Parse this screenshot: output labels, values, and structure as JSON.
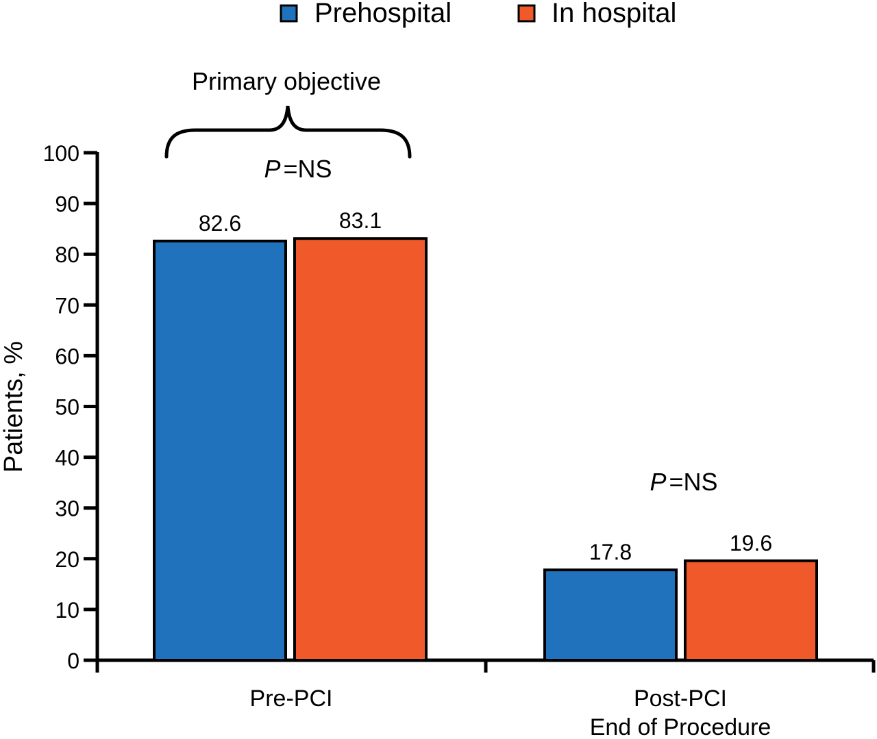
{
  "chart_data": {
    "type": "bar",
    "title": "",
    "xlabel": "",
    "ylabel": "Patients, %",
    "ylim": [
      0,
      100
    ],
    "yticks": [
      0,
      10,
      20,
      30,
      40,
      50,
      60,
      70,
      80,
      90,
      100
    ],
    "grid": false,
    "legend_position": "top-center",
    "categories": [
      {
        "label_lines": [
          "Pre-PCI"
        ]
      },
      {
        "label_lines": [
          "Post-PCI",
          "End of Procedure"
        ]
      }
    ],
    "series": [
      {
        "name": "Prehospital",
        "color": "#1f72bb",
        "values": [
          82.6,
          17.8
        ],
        "labels": [
          "82.6",
          "17.8"
        ]
      },
      {
        "name": "In hospital",
        "color": "#f05a2a",
        "values": [
          83.1,
          19.6
        ],
        "labels": [
          "83.1",
          "19.6"
        ]
      }
    ],
    "annotations": {
      "bracket_label": "Primary objective",
      "pvalues": [
        {
          "category": 0,
          "p_italic": "P",
          "rest": "=NS"
        },
        {
          "category": 1,
          "p_italic": "P",
          "rest": "=NS"
        }
      ]
    }
  }
}
